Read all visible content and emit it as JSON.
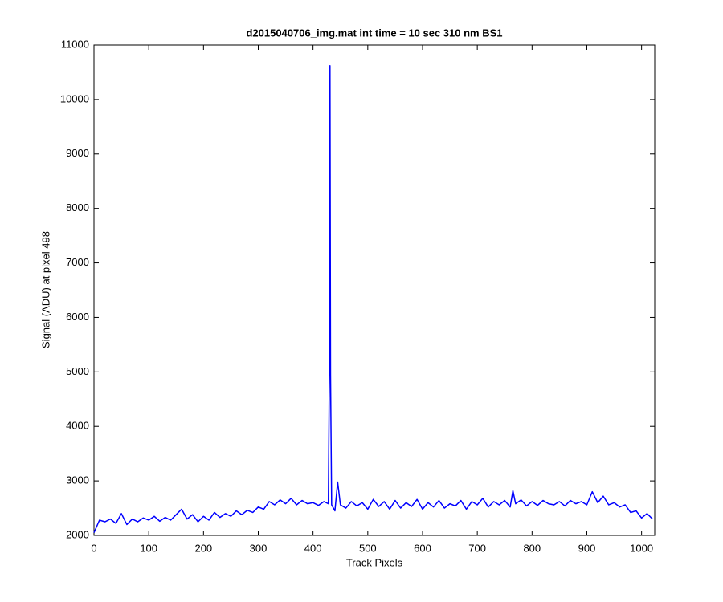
{
  "chart_data": {
    "type": "line",
    "title": "d2015040706_img.mat int time = 10 sec  310 nm BS1",
    "xlabel": "Track Pixels",
    "ylabel": "Signal (ADU) at pixel 498",
    "xlim": [
      0,
      1024
    ],
    "ylim": [
      2000,
      11000
    ],
    "xticks": [
      0,
      100,
      200,
      300,
      400,
      500,
      600,
      700,
      800,
      900,
      1000
    ],
    "yticks": [
      2000,
      3000,
      4000,
      5000,
      6000,
      7000,
      8000,
      9000,
      10000,
      11000
    ],
    "grid": false,
    "series": [
      {
        "color": "#0000ff",
        "x": [
          0,
          10,
          20,
          30,
          40,
          50,
          60,
          70,
          80,
          90,
          100,
          110,
          120,
          130,
          140,
          150,
          160,
          170,
          180,
          190,
          200,
          210,
          220,
          230,
          240,
          250,
          260,
          270,
          280,
          290,
          300,
          310,
          320,
          330,
          340,
          350,
          360,
          370,
          380,
          390,
          400,
          410,
          420,
          428,
          430,
          431,
          432,
          434,
          440,
          445,
          450,
          460,
          470,
          480,
          490,
          500,
          510,
          520,
          530,
          540,
          550,
          560,
          570,
          580,
          590,
          600,
          610,
          620,
          630,
          640,
          650,
          660,
          670,
          680,
          690,
          700,
          710,
          720,
          730,
          740,
          750,
          760,
          765,
          770,
          780,
          790,
          800,
          810,
          820,
          830,
          840,
          850,
          860,
          870,
          880,
          890,
          900,
          910,
          920,
          930,
          940,
          950,
          960,
          970,
          980,
          990,
          1000,
          1010,
          1020
        ],
        "values": [
          2050,
          2280,
          2250,
          2300,
          2220,
          2400,
          2200,
          2300,
          2250,
          2320,
          2280,
          2350,
          2260,
          2330,
          2280,
          2380,
          2480,
          2300,
          2380,
          2250,
          2350,
          2280,
          2420,
          2330,
          2400,
          2350,
          2450,
          2380,
          2460,
          2420,
          2520,
          2480,
          2620,
          2560,
          2650,
          2580,
          2680,
          2560,
          2640,
          2580,
          2600,
          2550,
          2620,
          2580,
          5200,
          10620,
          4950,
          2560,
          2450,
          2980,
          2560,
          2500,
          2620,
          2540,
          2600,
          2480,
          2660,
          2530,
          2620,
          2480,
          2640,
          2500,
          2600,
          2530,
          2660,
          2480,
          2600,
          2520,
          2640,
          2500,
          2580,
          2540,
          2640,
          2480,
          2620,
          2560,
          2680,
          2520,
          2620,
          2560,
          2640,
          2520,
          2820,
          2580,
          2650,
          2540,
          2620,
          2550,
          2640,
          2580,
          2560,
          2620,
          2540,
          2640,
          2580,
          2620,
          2560,
          2800,
          2600,
          2720,
          2560,
          2600,
          2520,
          2560,
          2420,
          2450,
          2320,
          2400,
          2300
        ]
      }
    ]
  }
}
